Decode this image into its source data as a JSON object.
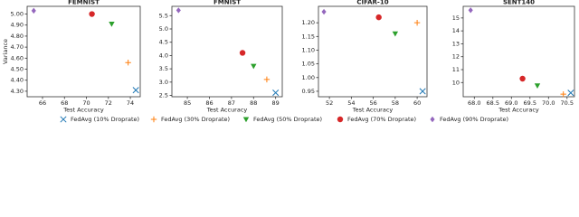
{
  "chart_data": [
    {
      "type": "scatter",
      "title": "FEMNIST",
      "x_label": "Test Accuracy",
      "y_label": "Variance",
      "xlim": [
        64.6,
        74.9
      ],
      "ylim": [
        4.25,
        5.07
      ],
      "xticks": [
        66,
        68,
        70,
        72,
        74
      ],
      "yticks": [
        {
          "value": 4.3,
          "label": "4.30"
        },
        {
          "value": 4.4,
          "label": "4.40"
        },
        {
          "value": 4.5,
          "label": "4.50"
        },
        {
          "value": 4.6,
          "label": "4.60"
        },
        {
          "value": 4.7,
          "label": "4.70"
        },
        {
          "value": 4.8,
          "label": "4.80"
        },
        {
          "value": 4.9,
          "label": "4.90"
        },
        {
          "value": 5.0,
          "label": "5.00"
        }
      ],
      "series": [
        {
          "name": "FedAvg (10% Droprate)",
          "color": "#1f77b4",
          "marker": "x",
          "x": [
            74.5
          ],
          "values": [
            4.31
          ]
        },
        {
          "name": "FedAvg (30% Droprate)",
          "color": "#ff7f0e",
          "marker": "+",
          "x": [
            73.8
          ],
          "values": [
            4.56
          ]
        },
        {
          "name": "FedAvg (50% Droprate)",
          "color": "#2ca02c",
          "marker": "v",
          "x": [
            72.3
          ],
          "values": [
            4.91
          ]
        },
        {
          "name": "FedAvg (70% Droprate)",
          "color": "#d62728",
          "marker": "o",
          "x": [
            70.5
          ],
          "values": [
            5.0
          ]
        },
        {
          "name": "FedAvg (90% Droprate)",
          "color": "#9467bd",
          "marker": "D",
          "x": [
            65.2
          ],
          "values": [
            5.03
          ]
        }
      ]
    },
    {
      "type": "scatter",
      "title": "FMNIST",
      "x_label": "Test Accuracy",
      "xlim": [
        84.3,
        89.3
      ],
      "ylim": [
        2.45,
        5.85
      ],
      "xticks": [
        85,
        86,
        87,
        88,
        89
      ],
      "yticks": [
        2.5,
        {
          "value": 3,
          "label": "3.0"
        },
        3.5,
        {
          "value": 4,
          "label": "4.0"
        },
        4.5,
        {
          "value": 5,
          "label": "5.0"
        },
        5.5
      ],
      "series": [
        {
          "name": "FedAvg (10% Droprate)",
          "color": "#1f77b4",
          "marker": "x",
          "x": [
            89.0
          ],
          "values": [
            2.6
          ]
        },
        {
          "name": "FedAvg (30% Droprate)",
          "color": "#ff7f0e",
          "marker": "+",
          "x": [
            88.6
          ],
          "values": [
            3.1
          ]
        },
        {
          "name": "FedAvg (50% Droprate)",
          "color": "#2ca02c",
          "marker": "v",
          "x": [
            88.0
          ],
          "values": [
            3.6
          ]
        },
        {
          "name": "FedAvg (70% Droprate)",
          "color": "#d62728",
          "marker": "o",
          "x": [
            87.5
          ],
          "values": [
            4.1
          ]
        },
        {
          "name": "FedAvg (90% Droprate)",
          "color": "#9467bd",
          "marker": "D",
          "x": [
            84.6
          ],
          "values": [
            5.7
          ]
        }
      ]
    },
    {
      "type": "scatter",
      "title": "CIFAR-10",
      "x_label": "Test Accuracy",
      "xlim": [
        51,
        60.9
      ],
      "ylim": [
        0.93,
        1.26
      ],
      "xticks": [
        52,
        54,
        56,
        58,
        60
      ],
      "yticks": [
        0.95,
        {
          "value": 1.0,
          "label": "1.00"
        },
        1.05,
        {
          "value": 1.1,
          "label": "1.10"
        },
        1.15,
        {
          "value": 1.2,
          "label": "1.20"
        }
      ],
      "series": [
        {
          "name": "FedAvg (10% Droprate)",
          "color": "#1f77b4",
          "marker": "x",
          "x": [
            60.5
          ],
          "values": [
            0.95
          ]
        },
        {
          "name": "FedAvg (30% Droprate)",
          "color": "#ff7f0e",
          "marker": "+",
          "x": [
            60.0
          ],
          "values": [
            1.2
          ]
        },
        {
          "name": "FedAvg (50% Droprate)",
          "color": "#2ca02c",
          "marker": "v",
          "x": [
            58.0
          ],
          "values": [
            1.16
          ]
        },
        {
          "name": "FedAvg (70% Droprate)",
          "color": "#d62728",
          "marker": "o",
          "x": [
            56.5
          ],
          "values": [
            1.22
          ]
        },
        {
          "name": "FedAvg (90% Droprate)",
          "color": "#9467bd",
          "marker": "D",
          "x": [
            51.5
          ],
          "values": [
            1.24
          ]
        }
      ]
    },
    {
      "type": "scatter",
      "title": "SENT140",
      "x_label": "Test Accuracy",
      "xlim": [
        67.7,
        70.7
      ],
      "ylim": [
        8.9,
        15.9
      ],
      "xticks": [
        {
          "value": 68,
          "label": "68.0"
        },
        68.5,
        {
          "value": 69,
          "label": "69.0"
        },
        69.5,
        {
          "value": 70,
          "label": "70.0"
        },
        70.5
      ],
      "yticks": [
        10,
        11,
        12,
        13,
        14,
        15
      ],
      "series": [
        {
          "name": "FedAvg (10% Droprate)",
          "color": "#1f77b4",
          "marker": "x",
          "x": [
            70.6
          ],
          "values": [
            9.2
          ]
        },
        {
          "name": "FedAvg (30% Droprate)",
          "color": "#ff7f0e",
          "marker": "+",
          "x": [
            70.4
          ],
          "values": [
            9.1
          ]
        },
        {
          "name": "FedAvg (50% Droprate)",
          "color": "#2ca02c",
          "marker": "v",
          "x": [
            69.7
          ],
          "values": [
            9.75
          ]
        },
        {
          "name": "FedAvg (70% Droprate)",
          "color": "#d62728",
          "marker": "o",
          "x": [
            69.3
          ],
          "values": [
            10.3
          ]
        },
        {
          "name": "FedAvg (90% Droprate)",
          "color": "#9467bd",
          "marker": "D",
          "x": [
            67.9
          ],
          "values": [
            15.6
          ]
        }
      ]
    }
  ]
}
